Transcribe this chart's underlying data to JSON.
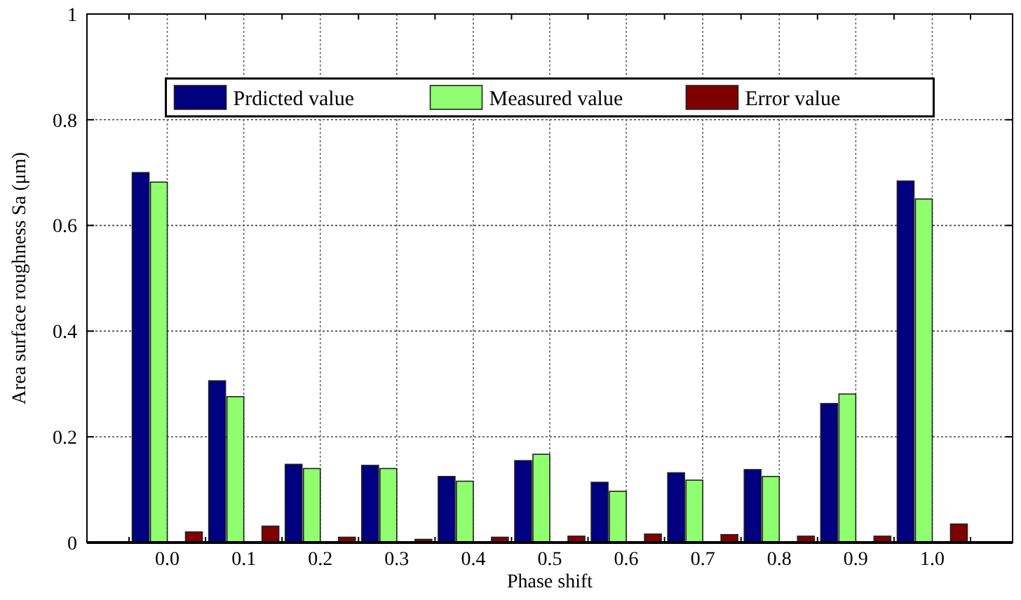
{
  "chart_data": {
    "type": "bar",
    "xlabel": "Phase shift",
    "ylabel": "Area surface roughness Sa (μm)",
    "categories": [
      "0.0",
      "0.1",
      "0.2",
      "0.3",
      "0.4",
      "0.5",
      "0.6",
      "0.7",
      "0.8",
      "0.9",
      "1.0"
    ],
    "series": [
      {
        "name": "Prdicted value",
        "color": "#000080",
        "values": [
          0.7,
          0.306,
          0.148,
          0.146,
          0.125,
          0.155,
          0.114,
          0.132,
          0.138,
          0.263,
          0.684
        ]
      },
      {
        "name": "Measured value",
        "color": "#8fff6f",
        "values": [
          0.682,
          0.276,
          0.14,
          0.14,
          0.116,
          0.167,
          0.097,
          0.118,
          0.125,
          0.281,
          0.65
        ]
      },
      {
        "name": "Error value",
        "color": "#800000",
        "values": [
          0.02,
          0.031,
          0.01,
          0.006,
          0.01,
          0.012,
          0.016,
          0.015,
          0.012,
          0.012,
          0.035
        ]
      }
    ],
    "ylim": [
      0,
      1
    ],
    "yticks": [
      0,
      0.2,
      0.4,
      0.6,
      0.8,
      1
    ],
    "grid": true,
    "legend": "top"
  }
}
